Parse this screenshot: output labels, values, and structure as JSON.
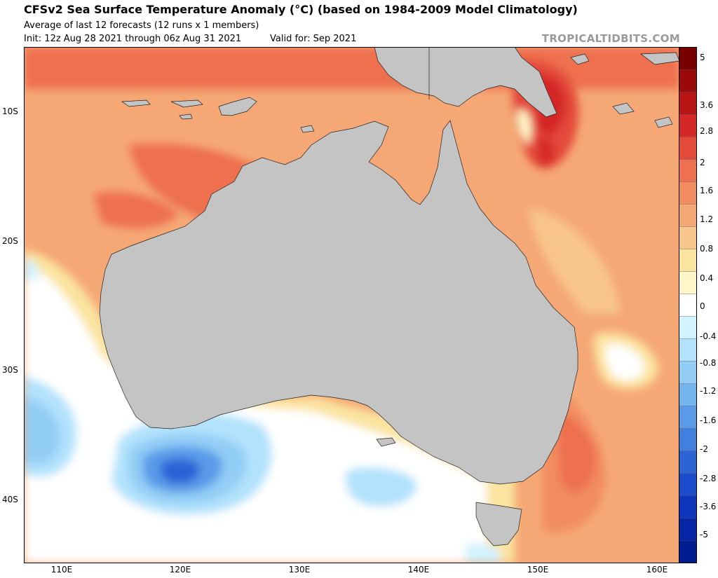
{
  "header": {
    "title": "CFSv2 Sea Surface Temperature Anomaly (°C) (based on 1984-2009 Model Climatology)",
    "subtitle": "Average of last 12 forecasts (12 runs x 1 members)",
    "init": "Init: 12z Aug 28 2021 through 06z Aug 31 2021",
    "valid": "Valid for: Sep 2021",
    "credit": "TROPICALTIDBITS.COM"
  },
  "map": {
    "type": "heatmap",
    "variable": "Sea surface temperature anomaly",
    "units": "°C",
    "extent": {
      "lon": [
        107,
        162
      ],
      "lat": [
        -44.9,
        -5
      ]
    },
    "lat_ticks": [
      "10S",
      "20S",
      "30S",
      "40S"
    ],
    "lon_ticks": [
      "110E",
      "120E",
      "130E",
      "140E",
      "150E",
      "160E"
    ],
    "land_color": "#c4c4c4"
  },
  "colorbar": {
    "labels": [
      "5",
      "3.6",
      "2.8",
      "2",
      "1.6",
      "1.2",
      "0.8",
      "0.4",
      "0",
      "-0.4",
      "-0.8",
      "-1.2",
      "-1.6",
      "-2",
      "-2.8",
      "-3.6",
      "-5"
    ],
    "colors": [
      "#7a0000",
      "#9a0a0a",
      "#b81414",
      "#d42828",
      "#e44a3a",
      "#ee7050",
      "#f28c5e",
      "#f5a875",
      "#f8c68c",
      "#fbe4a0",
      "#fdf6c8",
      "#ffffff",
      "#d2f2ff",
      "#b2e2fc",
      "#92cdf6",
      "#74b5f0",
      "#5a9ae8",
      "#4280e0",
      "#2c64d6",
      "#1a4ccc",
      "#0e36bc",
      "#0626a8",
      "#001c90"
    ]
  }
}
